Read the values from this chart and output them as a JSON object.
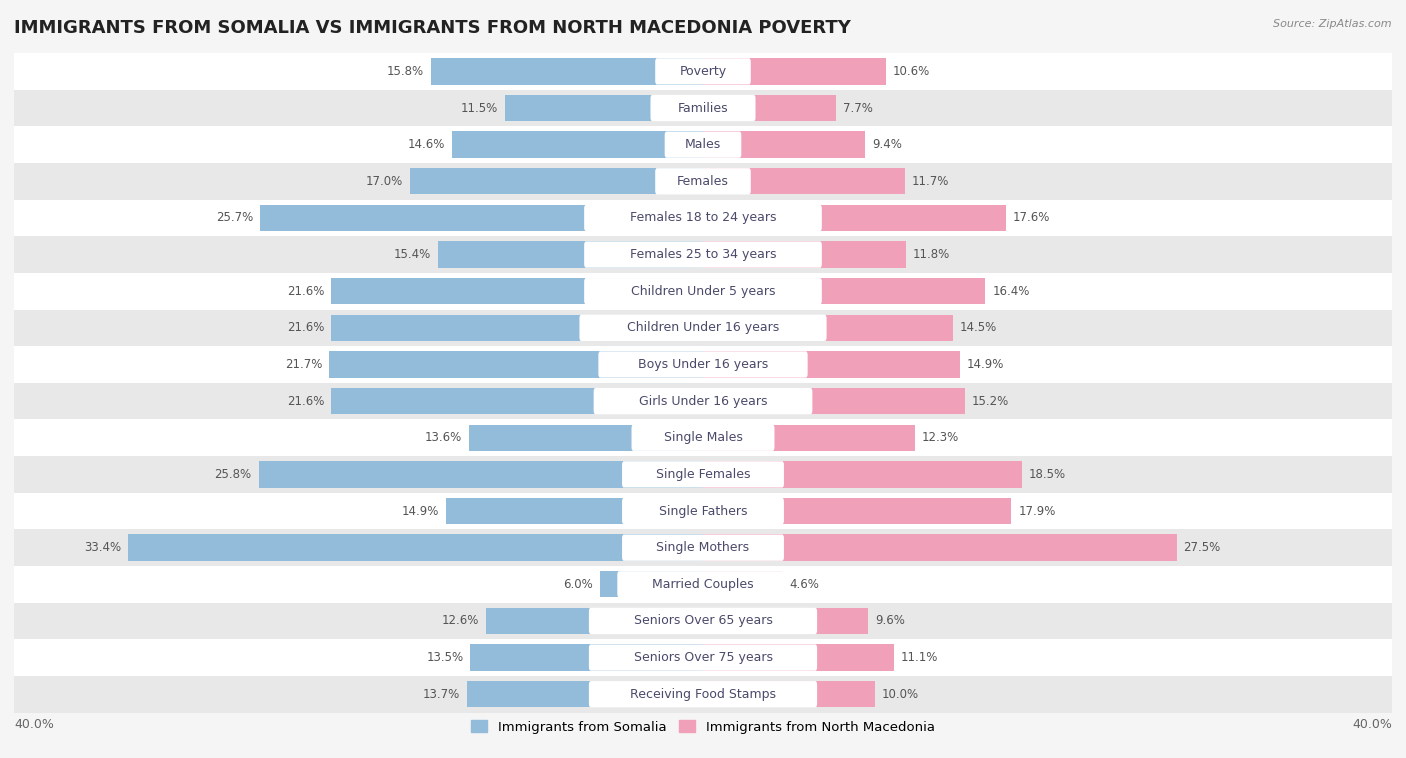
{
  "title": "IMMIGRANTS FROM SOMALIA VS IMMIGRANTS FROM NORTH MACEDONIA POVERTY",
  "source": "Source: ZipAtlas.com",
  "categories": [
    "Poverty",
    "Families",
    "Males",
    "Females",
    "Females 18 to 24 years",
    "Females 25 to 34 years",
    "Children Under 5 years",
    "Children Under 16 years",
    "Boys Under 16 years",
    "Girls Under 16 years",
    "Single Males",
    "Single Females",
    "Single Fathers",
    "Single Mothers",
    "Married Couples",
    "Seniors Over 65 years",
    "Seniors Over 75 years",
    "Receiving Food Stamps"
  ],
  "somalia_values": [
    15.8,
    11.5,
    14.6,
    17.0,
    25.7,
    15.4,
    21.6,
    21.6,
    21.7,
    21.6,
    13.6,
    25.8,
    14.9,
    33.4,
    6.0,
    12.6,
    13.5,
    13.7
  ],
  "macedonia_values": [
    10.6,
    7.7,
    9.4,
    11.7,
    17.6,
    11.8,
    16.4,
    14.5,
    14.9,
    15.2,
    12.3,
    18.5,
    17.9,
    27.5,
    4.6,
    9.6,
    11.1,
    10.0
  ],
  "somalia_color": "#92bcd9",
  "macedonia_color": "#f0a0b8",
  "background_color": "#f5f5f5",
  "row_colors": [
    "#ffffff",
    "#e8e8e8"
  ],
  "xlim": 40.0,
  "bar_height": 0.72,
  "legend_somalia": "Immigrants from Somalia",
  "legend_macedonia": "Immigrants from North Macedonia",
  "title_fontsize": 13,
  "label_fontsize": 9,
  "value_fontsize": 8.5,
  "axis_fontsize": 9,
  "label_pill_color": "#ffffff",
  "label_text_color": "#4a4a6a"
}
